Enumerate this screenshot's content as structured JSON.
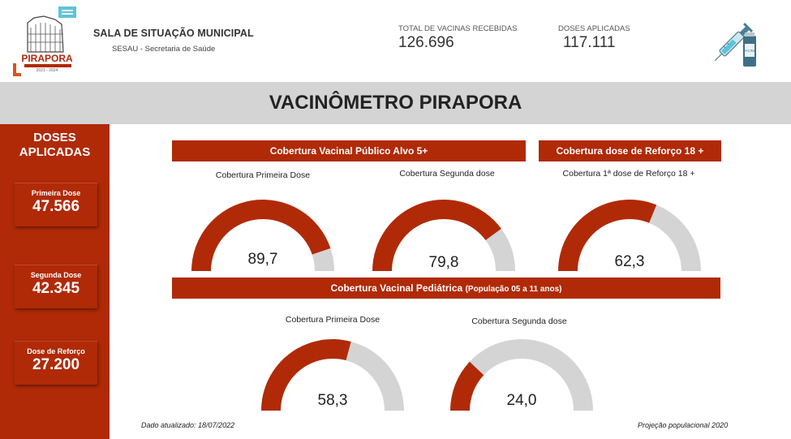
{
  "header": {
    "logo_text": "PIRAPORA",
    "logo_years": "2021 - 2024",
    "org_title": "SALA DE SITUAÇÃO MUNICIPAL",
    "org_sub": "SESAU - Secretaria de Saúde",
    "kpis": [
      {
        "label": "TOTAL DE VACINAS RECEBIDAS",
        "value": "126.696"
      },
      {
        "label": "DOSES APLICADAS",
        "value": "117.111"
      }
    ],
    "syringe_label": "VACINA"
  },
  "title": "VACINÔMETRO PIRAPORA",
  "sidebar": {
    "title": "DOSES APLICADAS",
    "cards": [
      {
        "label": "Primeira Dose",
        "value": "47.566"
      },
      {
        "label": "Segunda Dose",
        "value": "42.345"
      },
      {
        "label": "Dose de Reforço",
        "value": "27.200"
      }
    ]
  },
  "sections": {
    "alvo": {
      "title": "Cobertura Vacinal Público Alvo 5+"
    },
    "reforco": {
      "title": "Cobertura dose de Reforço 18 +"
    },
    "pediatrica": {
      "title": "Cobertura Vacinal Pediátrica",
      "subtitle": "(População 05 a 11 anos)"
    }
  },
  "gauges": [
    {
      "label": "Cobertura Primeira Dose",
      "value": 89.7,
      "display": "89,7"
    },
    {
      "label": "Cobertura Segunda dose",
      "value": 79.8,
      "display": "79,8"
    },
    {
      "label": "Cobertura 1ª dose de Reforço 18 +",
      "value": 62.3,
      "display": "62,3"
    },
    {
      "label": "Cobertura Primeira Dose",
      "value": 58.3,
      "display": "58,3"
    },
    {
      "label": "Cobertura Segunda dose",
      "value": 24.0,
      "display": "24,0"
    }
  ],
  "gauge_max": 100,
  "colors": {
    "primary": "#b02a07",
    "track": "#d4d4d4",
    "title_band": "#d4d4d4"
  },
  "footer": {
    "updated": "Dado atualizado: 18/07/2022",
    "projection": "Projeção populacional 2020"
  }
}
